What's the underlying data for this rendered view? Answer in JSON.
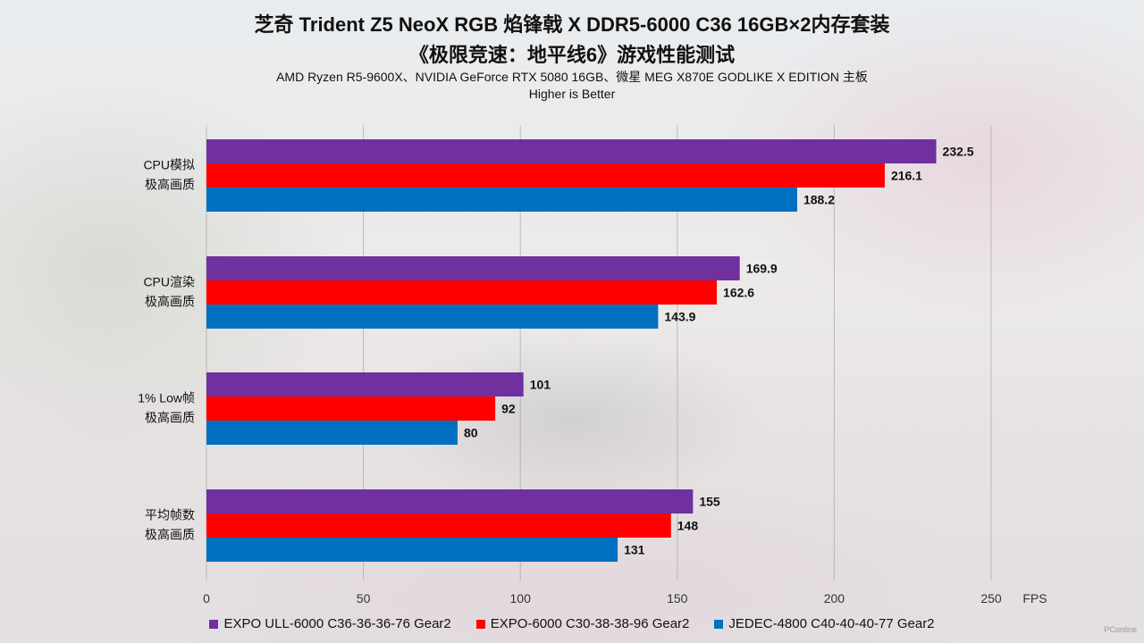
{
  "chart_data": {
    "type": "bar",
    "orientation": "horizontal",
    "title": "芝奇 Trident Z5 NeoX RGB 焰锋戟 X DDR5-6000 C36 16GB×2内存套装",
    "subtitle": "《极限竞速：地平线6》游戏性能测试",
    "caption": "AMD Ryzen R5-9600X、NVIDIA GeForce RTX 5080 16GB、微星 MEG X870E GODLIKE X EDITION 主板",
    "note": "Higher is Better",
    "categories": [
      [
        "CPU模拟",
        "极高画质"
      ],
      [
        "CPU渲染",
        "极高画质"
      ],
      [
        "1% Low帧",
        "极高画质"
      ],
      [
        "平均帧数",
        "极高画质"
      ]
    ],
    "series": [
      {
        "name": "EXPO ULL-6000 C36-36-36-76 Gear2",
        "color": "#7030a0",
        "values": [
          232.5,
          169.9,
          101,
          155
        ],
        "labels": [
          "232.5",
          "169.9",
          "101",
          "155"
        ]
      },
      {
        "name": "EXPO-6000 C30-38-38-96 Gear2",
        "color": "#ff0000",
        "values": [
          216.1,
          162.6,
          92,
          148
        ],
        "labels": [
          "216.1",
          "162.6",
          "92",
          "148"
        ]
      },
      {
        "name": "JEDEC-4800 C40-40-40-77 Gear2",
        "color": "#0070c0",
        "values": [
          188.2,
          143.9,
          80,
          131
        ],
        "labels": [
          "188.2",
          "143.9",
          "80",
          "131"
        ]
      }
    ],
    "xticks": [
      "0",
      "50",
      "100",
      "150",
      "200",
      "250"
    ],
    "xunit": "FPS",
    "xlim": [
      0,
      250
    ],
    "grid": true,
    "legend_position": "bottom"
  },
  "watermark": "PConline"
}
